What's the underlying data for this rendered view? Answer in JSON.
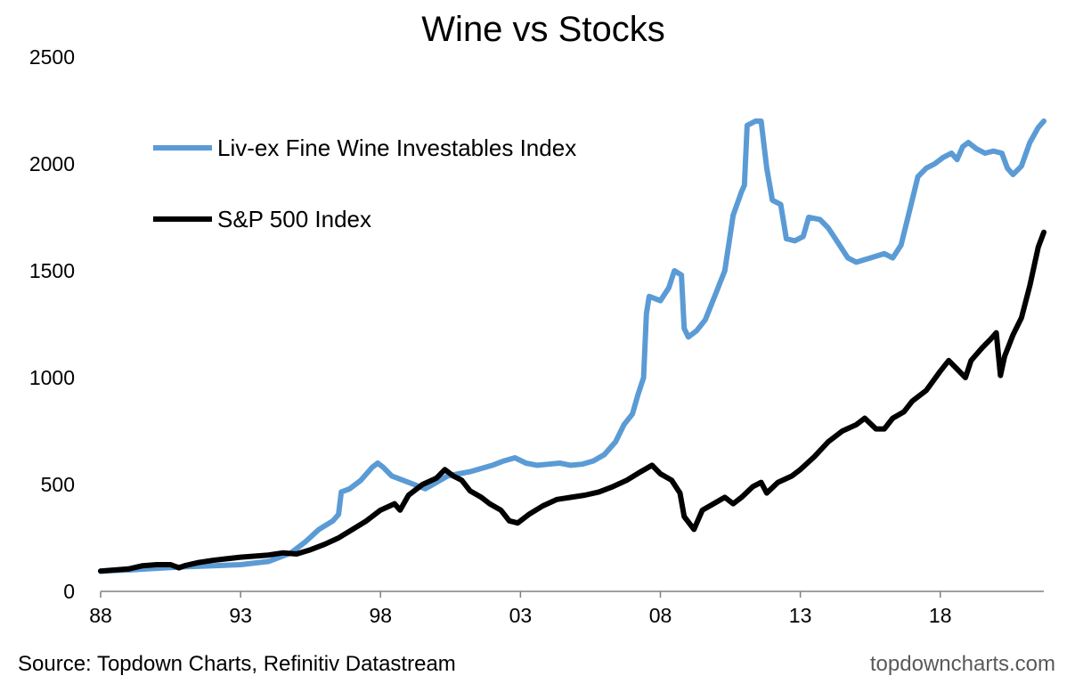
{
  "chart_data": {
    "type": "line",
    "title": "Wine vs Stocks",
    "xlabel": "",
    "ylabel": "",
    "xlim": [
      1988,
      2021.7
    ],
    "ylim": [
      0,
      2500
    ],
    "x_ticks": [
      1988,
      1993,
      1998,
      2003,
      2008,
      2013,
      2018
    ],
    "x_tick_labels": [
      "88",
      "93",
      "98",
      "03",
      "08",
      "13",
      "18"
    ],
    "y_ticks": [
      0,
      500,
      1000,
      1500,
      2000,
      2500
    ],
    "y_tick_labels": [
      "0",
      "500",
      "1000",
      "1500",
      "2000",
      "2500"
    ],
    "grid": false,
    "legend_position": "top-left",
    "series": [
      {
        "name": "Liv-ex Fine Wine Investables Index",
        "color": "#5B9BD5",
        "points": [
          [
            1988.0,
            95
          ],
          [
            1989.0,
            100
          ],
          [
            1990.0,
            108
          ],
          [
            1991.0,
            115
          ],
          [
            1992.0,
            120
          ],
          [
            1993.0,
            125
          ],
          [
            1994.0,
            140
          ],
          [
            1994.8,
            180
          ],
          [
            1995.3,
            230
          ],
          [
            1995.8,
            290
          ],
          [
            1996.3,
            330
          ],
          [
            1996.5,
            360
          ],
          [
            1996.6,
            465
          ],
          [
            1996.9,
            480
          ],
          [
            1997.3,
            520
          ],
          [
            1997.7,
            580
          ],
          [
            1997.9,
            600
          ],
          [
            1998.1,
            580
          ],
          [
            1998.4,
            540
          ],
          [
            1998.8,
            520
          ],
          [
            1999.2,
            500
          ],
          [
            1999.6,
            480
          ],
          [
            2000.0,
            510
          ],
          [
            2000.4,
            540
          ],
          [
            2000.8,
            550
          ],
          [
            2001.2,
            560
          ],
          [
            2001.6,
            575
          ],
          [
            2002.0,
            590
          ],
          [
            2002.4,
            610
          ],
          [
            2002.8,
            625
          ],
          [
            2003.2,
            600
          ],
          [
            2003.6,
            590
          ],
          [
            2004.0,
            595
          ],
          [
            2004.4,
            600
          ],
          [
            2004.8,
            590
          ],
          [
            2005.2,
            595
          ],
          [
            2005.6,
            610
          ],
          [
            2006.0,
            640
          ],
          [
            2006.4,
            700
          ],
          [
            2006.7,
            780
          ],
          [
            2007.0,
            830
          ],
          [
            2007.2,
            920
          ],
          [
            2007.4,
            1000
          ],
          [
            2007.5,
            1300
          ],
          [
            2007.6,
            1380
          ],
          [
            2008.0,
            1360
          ],
          [
            2008.3,
            1420
          ],
          [
            2008.5,
            1500
          ],
          [
            2008.75,
            1480
          ],
          [
            2008.85,
            1230
          ],
          [
            2009.0,
            1190
          ],
          [
            2009.3,
            1220
          ],
          [
            2009.6,
            1270
          ],
          [
            2010.0,
            1400
          ],
          [
            2010.3,
            1500
          ],
          [
            2010.6,
            1760
          ],
          [
            2010.9,
            1870
          ],
          [
            2011.0,
            1900
          ],
          [
            2011.1,
            2180
          ],
          [
            2011.4,
            2200
          ],
          [
            2011.6,
            2200
          ],
          [
            2011.8,
            1980
          ],
          [
            2012.0,
            1830
          ],
          [
            2012.3,
            1810
          ],
          [
            2012.5,
            1650
          ],
          [
            2012.8,
            1640
          ],
          [
            2013.1,
            1660
          ],
          [
            2013.3,
            1750
          ],
          [
            2013.7,
            1740
          ],
          [
            2014.0,
            1700
          ],
          [
            2014.3,
            1640
          ],
          [
            2014.7,
            1560
          ],
          [
            2015.0,
            1540
          ],
          [
            2015.5,
            1560
          ],
          [
            2016.0,
            1580
          ],
          [
            2016.3,
            1560
          ],
          [
            2016.6,
            1620
          ],
          [
            2016.9,
            1780
          ],
          [
            2017.2,
            1940
          ],
          [
            2017.5,
            1980
          ],
          [
            2017.8,
            2000
          ],
          [
            2018.1,
            2030
          ],
          [
            2018.4,
            2050
          ],
          [
            2018.6,
            2020
          ],
          [
            2018.8,
            2080
          ],
          [
            2019.0,
            2100
          ],
          [
            2019.3,
            2070
          ],
          [
            2019.6,
            2050
          ],
          [
            2019.9,
            2060
          ],
          [
            2020.2,
            2050
          ],
          [
            2020.4,
            1980
          ],
          [
            2020.6,
            1950
          ],
          [
            2020.9,
            1990
          ],
          [
            2021.2,
            2100
          ],
          [
            2021.5,
            2170
          ],
          [
            2021.7,
            2200
          ]
        ]
      },
      {
        "name": "S&P 500 Index",
        "color": "#000000",
        "points": [
          [
            1988.0,
            95
          ],
          [
            1988.5,
            100
          ],
          [
            1989.0,
            105
          ],
          [
            1989.5,
            120
          ],
          [
            1990.0,
            125
          ],
          [
            1990.5,
            125
          ],
          [
            1990.8,
            110
          ],
          [
            1991.0,
            120
          ],
          [
            1991.5,
            135
          ],
          [
            1992.0,
            145
          ],
          [
            1993.0,
            160
          ],
          [
            1994.0,
            170
          ],
          [
            1994.5,
            180
          ],
          [
            1995.0,
            175
          ],
          [
            1995.5,
            195
          ],
          [
            1996.0,
            220
          ],
          [
            1996.5,
            250
          ],
          [
            1997.0,
            290
          ],
          [
            1997.5,
            330
          ],
          [
            1998.0,
            380
          ],
          [
            1998.5,
            410
          ],
          [
            1998.7,
            380
          ],
          [
            1999.0,
            450
          ],
          [
            1999.5,
            500
          ],
          [
            2000.0,
            530
          ],
          [
            2000.3,
            570
          ],
          [
            2000.6,
            540
          ],
          [
            2000.9,
            520
          ],
          [
            2001.2,
            470
          ],
          [
            2001.6,
            440
          ],
          [
            2001.9,
            410
          ],
          [
            2002.3,
            380
          ],
          [
            2002.6,
            330
          ],
          [
            2002.9,
            320
          ],
          [
            2003.3,
            360
          ],
          [
            2003.8,
            400
          ],
          [
            2004.3,
            430
          ],
          [
            2004.8,
            440
          ],
          [
            2005.3,
            450
          ],
          [
            2005.8,
            465
          ],
          [
            2006.3,
            490
          ],
          [
            2006.8,
            520
          ],
          [
            2007.3,
            560
          ],
          [
            2007.7,
            590
          ],
          [
            2008.0,
            550
          ],
          [
            2008.4,
            520
          ],
          [
            2008.7,
            460
          ],
          [
            2008.85,
            350
          ],
          [
            2009.2,
            290
          ],
          [
            2009.5,
            380
          ],
          [
            2009.9,
            410
          ],
          [
            2010.3,
            440
          ],
          [
            2010.6,
            410
          ],
          [
            2010.9,
            440
          ],
          [
            2011.3,
            490
          ],
          [
            2011.6,
            510
          ],
          [
            2011.8,
            460
          ],
          [
            2012.2,
            510
          ],
          [
            2012.7,
            540
          ],
          [
            2013.0,
            570
          ],
          [
            2013.5,
            630
          ],
          [
            2014.0,
            700
          ],
          [
            2014.5,
            750
          ],
          [
            2015.0,
            780
          ],
          [
            2015.3,
            810
          ],
          [
            2015.7,
            760
          ],
          [
            2016.0,
            760
          ],
          [
            2016.3,
            810
          ],
          [
            2016.7,
            840
          ],
          [
            2017.0,
            890
          ],
          [
            2017.5,
            940
          ],
          [
            2018.0,
            1030
          ],
          [
            2018.3,
            1080
          ],
          [
            2018.6,
            1040
          ],
          [
            2018.9,
            1000
          ],
          [
            2019.1,
            1080
          ],
          [
            2019.5,
            1140
          ],
          [
            2019.8,
            1180
          ],
          [
            2020.0,
            1210
          ],
          [
            2020.15,
            1010
          ],
          [
            2020.3,
            1100
          ],
          [
            2020.6,
            1200
          ],
          [
            2020.9,
            1280
          ],
          [
            2021.2,
            1430
          ],
          [
            2021.5,
            1610
          ],
          [
            2021.7,
            1680
          ]
        ]
      }
    ],
    "source": "Source: Topdown Charts, Refinitiv Datastream",
    "brand": "topdowncharts.com"
  }
}
